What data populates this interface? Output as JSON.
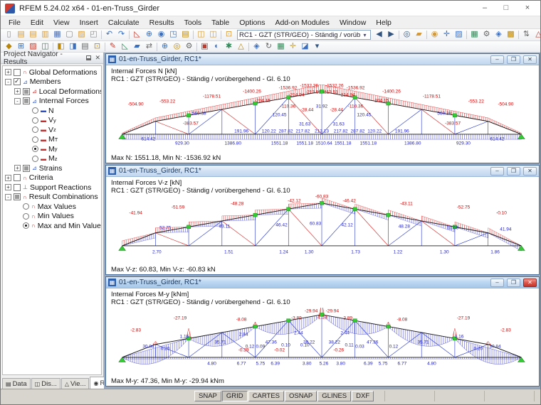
{
  "titlebar": {
    "title": "RFEM 5.24.02 x64 - 01-en-Truss_Girder",
    "minimize": "–",
    "maximize": "□",
    "close": "×"
  },
  "menu": [
    "File",
    "Edit",
    "View",
    "Insert",
    "Calculate",
    "Results",
    "Tools",
    "Table",
    "Options",
    "Add-on Modules",
    "Window",
    "Help"
  ],
  "combo1": "RC1 - GZT (STR/GEO) - Ständig / vorüb",
  "combo_arrow": "▾",
  "toolbars": {
    "row1a": [
      {
        "g": "▯",
        "c": "#888"
      },
      {
        "g": "▤",
        "c": "#d49a3a"
      },
      {
        "g": "▤",
        "c": "#d49a3a"
      },
      {
        "g": "▥",
        "c": "#d49a3a"
      },
      {
        "g": "▦",
        "c": "#4a6fb5"
      },
      {
        "g": "▢",
        "c": "#888"
      },
      {
        "g": "▨",
        "c": "#d49a3a"
      },
      {
        "g": "◰",
        "c": "#888"
      },
      {
        "sep": true
      },
      {
        "g": "↶",
        "c": "#3a6fbf"
      },
      {
        "g": "↷",
        "c": "#3a6fbf"
      },
      {
        "sep": true
      },
      {
        "g": "◺",
        "c": "#c0392b"
      },
      {
        "g": "⊕",
        "c": "#3a6fbf"
      },
      {
        "g": "◉",
        "c": "#3a6fbf"
      },
      {
        "g": "◳",
        "c": "#3a6fbf"
      },
      {
        "g": "▤",
        "c": "#b8860b"
      },
      {
        "sep": true
      },
      {
        "g": "◫",
        "c": "#d49a3a"
      },
      {
        "g": "◫",
        "c": "#d49a3a"
      },
      {
        "sep": true
      },
      {
        "g": "⊡",
        "c": "#d49a3a"
      }
    ],
    "row1b": [
      {
        "g": "◀",
        "c": "#33557f"
      },
      {
        "g": "▶",
        "c": "#33557f"
      },
      {
        "sep": true
      },
      {
        "g": "◎",
        "c": "#33557f"
      },
      {
        "g": "▰",
        "c": "#d49a3a"
      },
      {
        "sep": true
      },
      {
        "g": "◉",
        "c": "#d49a3a"
      },
      {
        "g": "✛",
        "c": "#3a6fbf"
      },
      {
        "g": "▨",
        "c": "#3a6fbf"
      },
      {
        "sep": true
      },
      {
        "g": "▦",
        "c": "#2e8b57"
      },
      {
        "g": "⚙",
        "c": "#666"
      },
      {
        "g": "◈",
        "c": "#3a6fbf"
      },
      {
        "g": "▩",
        "c": "#b8860b"
      },
      {
        "sep": true
      },
      {
        "g": "⇅",
        "c": "#666"
      },
      {
        "g": "△",
        "c": "#c0392b"
      },
      {
        "g": "✕",
        "c": "#c0392b"
      },
      {
        "g": "◑",
        "c": "#444"
      },
      {
        "g": "◆",
        "c": "#3a6fbf"
      },
      {
        "g": "▾",
        "c": "#33557f"
      }
    ],
    "row2": [
      {
        "g": "◆",
        "c": "#b8860b"
      },
      {
        "g": "⊞",
        "c": "#3a6fbf"
      },
      {
        "g": "▨",
        "c": "#c0392b"
      },
      {
        "g": "◫",
        "c": "#2e8b57"
      },
      {
        "sep": true
      },
      {
        "g": "◧",
        "c": "#b8860b"
      },
      {
        "g": "◨",
        "c": "#3a6fbf"
      },
      {
        "g": "▤",
        "c": "#666"
      },
      {
        "g": "⊡",
        "c": "#b8860b"
      },
      {
        "sep": true
      },
      {
        "g": "✎",
        "c": "#c0392b"
      },
      {
        "g": "◺",
        "c": "#2e8b57"
      },
      {
        "g": "▰",
        "c": "#3a6fbf"
      },
      {
        "g": "⇄",
        "c": "#666"
      },
      {
        "sep": true
      },
      {
        "g": "⊕",
        "c": "#3a6fbf"
      },
      {
        "g": "◎",
        "c": "#b8860b"
      },
      {
        "g": "⚙",
        "c": "#666"
      },
      {
        "sep": true
      },
      {
        "g": "▣",
        "c": "#c0392b"
      },
      {
        "g": "◐",
        "c": "#3a6fbf"
      },
      {
        "g": "✱",
        "c": "#2e8b57"
      },
      {
        "g": "△",
        "c": "#b8860b"
      },
      {
        "sep": true
      },
      {
        "g": "◈",
        "c": "#3a6fbf"
      },
      {
        "g": "↻",
        "c": "#666"
      },
      {
        "g": "▦",
        "c": "#2e8b57"
      },
      {
        "g": "✛",
        "c": "#d4a017"
      },
      {
        "g": "◪",
        "c": "#3a6fbf"
      },
      {
        "g": "▾",
        "c": "#33557f"
      }
    ]
  },
  "navigator": {
    "title": "Project Navigator - Results",
    "close": "✕",
    "tree": [
      {
        "lvl": 0,
        "exp": "+",
        "box": "un",
        "icon": "∩",
        "ic": "#c03030",
        "label": "Global Deformations",
        "sub": ""
      },
      {
        "lvl": 0,
        "exp": "-",
        "box": "ck",
        "icon": "⊿",
        "ic": "#3050c0",
        "label": "Members",
        "sub": ""
      },
      {
        "lvl": 1,
        "exp": "+",
        "box": "pa",
        "icon": "⊿",
        "ic": "#c03030",
        "label": "Local Deformations",
        "sub": ""
      },
      {
        "lvl": 1,
        "exp": "-",
        "box": "pa",
        "icon": "⊿",
        "ic": "#3050c0",
        "label": "Internal Forces",
        "sub": ""
      },
      {
        "lvl": 2,
        "radio": 0,
        "icon": "▬",
        "ic": "#3050c0",
        "label": "N",
        "sub": ""
      },
      {
        "lvl": 2,
        "radio": 0,
        "icon": "▬",
        "ic": "#c03030",
        "label": "V",
        "sub": "y"
      },
      {
        "lvl": 2,
        "radio": 0,
        "icon": "▬",
        "ic": "#c03030",
        "label": "V",
        "sub": "z"
      },
      {
        "lvl": 2,
        "radio": 0,
        "icon": "▬",
        "ic": "#c03030",
        "label": "M",
        "sub": "T"
      },
      {
        "lvl": 2,
        "radio": 1,
        "icon": "▬",
        "ic": "#c03030",
        "label": "M",
        "sub": "y"
      },
      {
        "lvl": 2,
        "radio": 0,
        "icon": "▬",
        "ic": "#c03030",
        "label": "M",
        "sub": "z"
      },
      {
        "lvl": 1,
        "exp": "+",
        "box": "pa",
        "icon": "⊿",
        "ic": "#3050c0",
        "label": "Strains",
        "sub": ""
      },
      {
        "lvl": 0,
        "exp": "+",
        "box": "un",
        "icon": "∩",
        "ic": "#c03030",
        "label": "Criteria",
        "sub": ""
      },
      {
        "lvl": 0,
        "exp": "+",
        "box": "un",
        "icon": "⊥",
        "ic": "#2e8b57",
        "label": "Support Reactions",
        "sub": ""
      },
      {
        "lvl": 0,
        "exp": "-",
        "box": "pa",
        "icon": "∩",
        "ic": "#c03030",
        "label": "Result Combinations",
        "sub": ""
      },
      {
        "lvl": 1,
        "radio": 0,
        "icon": "∩",
        "ic": "#c03030",
        "label": "Max Values",
        "sub": ""
      },
      {
        "lvl": 1,
        "radio": 0,
        "icon": "∩",
        "ic": "#c03030",
        "label": "Min Values",
        "sub": ""
      },
      {
        "lvl": 1,
        "radio": 1,
        "icon": "∩",
        "ic": "#c03030",
        "label": "Max and Min Values",
        "sub": ""
      }
    ],
    "tabs": [
      {
        "label": "Data",
        "icon": "▤",
        "active": false
      },
      {
        "label": "Dis...",
        "icon": "◫",
        "active": false
      },
      {
        "label": "Vie...",
        "icon": "△",
        "active": false
      },
      {
        "label": "Re...",
        "icon": "◉",
        "active": true
      }
    ]
  },
  "windows": [
    {
      "title": "01-en-Truss_Girder, RC1*",
      "line1": "Internal Forces N [kN]",
      "line2": "RC1 : GZT (STR/GEO) - Ständig / vorübergehend - Gl. 6.10",
      "footer": "Max N: 1551.18, Min N: -1536.92 kN",
      "type": "N",
      "active": false,
      "labels": [
        [
          "-504.90",
          6,
          30,
          "r"
        ],
        [
          "-553.22",
          13.5,
          26,
          "r"
        ],
        [
          "-1178.51",
          24,
          18,
          "r"
        ],
        [
          "-1400.26",
          33.5,
          11,
          "r"
        ],
        [
          "-1536.92",
          42,
          5,
          "r"
        ],
        [
          "-1532.26",
          47,
          2,
          "r"
        ],
        [
          "-1532.26",
          53,
          2,
          "r"
        ],
        [
          "-1536.92",
          58,
          5,
          "r"
        ],
        [
          "-1400.26",
          66.5,
          11,
          "r"
        ],
        [
          "-1178.51",
          76,
          18,
          "r"
        ],
        [
          "-553.22",
          86.5,
          26,
          "r"
        ],
        [
          "-504.90",
          93.5,
          30,
          "r"
        ],
        [
          "-204.15",
          36,
          24,
          "r"
        ],
        [
          "-214.94",
          44,
          16,
          "r"
        ],
        [
          "-213.51",
          48,
          12,
          "r"
        ],
        [
          "-213.51",
          52,
          12,
          "r"
        ],
        [
          "-214.94",
          56,
          16,
          "r"
        ],
        [
          "-204.15",
          64,
          24,
          "r"
        ],
        [
          "560.38",
          21,
          44,
          "b"
        ],
        [
          "-383.57",
          19,
          58,
          "r"
        ],
        [
          "-383.57",
          81,
          58,
          "r"
        ],
        [
          "560.38",
          79,
          44,
          "b"
        ],
        [
          "-110.36",
          42,
          33,
          "r"
        ],
        [
          "-28.44",
          46.5,
          38,
          "r"
        ],
        [
          "31.92",
          50,
          33,
          "b"
        ],
        [
          "-28.44",
          53.5,
          38,
          "r"
        ],
        [
          "-110.36",
          58,
          33,
          "r"
        ],
        [
          "120.45",
          40,
          46,
          "b"
        ],
        [
          "120.45",
          60,
          46,
          "b"
        ],
        [
          "31.63",
          46,
          60,
          "b"
        ],
        [
          "31.63",
          54,
          60,
          "b"
        ],
        [
          "191.96",
          31,
          70,
          "b"
        ],
        [
          "120.22",
          37.5,
          70,
          "b"
        ],
        [
          "287.82",
          41.5,
          70,
          "b"
        ],
        [
          "217.82",
          45.5,
          70,
          "b"
        ],
        [
          "213.13",
          50,
          70,
          "b"
        ],
        [
          "217.82",
          54.5,
          70,
          "b"
        ],
        [
          "287.82",
          58.5,
          70,
          "b"
        ],
        [
          "120.22",
          62.5,
          70,
          "b"
        ],
        [
          "191.96",
          69,
          70,
          "b"
        ],
        [
          "614.42",
          9,
          82,
          "b"
        ],
        [
          "929.30",
          17,
          88,
          "b"
        ],
        [
          "1386.80",
          29,
          88,
          "b"
        ],
        [
          "1551.18",
          40,
          88,
          "b"
        ],
        [
          "1551.18",
          46,
          88,
          "b"
        ],
        [
          "1510.64",
          50.5,
          88,
          "b"
        ],
        [
          "1551.18",
          55,
          88,
          "b"
        ],
        [
          "1551.18",
          61,
          88,
          "b"
        ],
        [
          "1386.80",
          71.5,
          88,
          "b"
        ],
        [
          "929.30",
          83.5,
          88,
          "b"
        ],
        [
          "614.42",
          91.5,
          82,
          "b"
        ]
      ]
    },
    {
      "title": "01-en-Truss_Girder, RC1*",
      "line1": "Internal Forces V-z [kN]",
      "line2": "RC1 : GZT (STR/GEO) - Ständig / vorübergehend - Gl. 6.10",
      "footer": "Max V-z: 60.83, Min V-z: -60.83 kN",
      "type": "V",
      "active": false,
      "labels": [
        [
          "-41.94",
          6,
          26,
          "r"
        ],
        [
          "-51.59",
          16,
          17,
          "r"
        ],
        [
          "-48.28",
          30,
          12,
          "r"
        ],
        [
          "-42.12",
          43.5,
          7,
          "r"
        ],
        [
          "-60.83",
          50,
          1,
          "r"
        ],
        [
          "-46.42",
          56.5,
          7,
          "r"
        ],
        [
          "-43.11",
          70,
          12,
          "r"
        ],
        [
          "-52.75",
          83.5,
          17,
          "r"
        ],
        [
          "-0.10",
          92.5,
          26,
          "r"
        ],
        [
          "52.75",
          13,
          48,
          "b"
        ],
        [
          "43.11",
          27,
          46,
          "b"
        ],
        [
          "46.42",
          40.5,
          44,
          "b"
        ],
        [
          "60.83",
          48.5,
          42,
          "b"
        ],
        [
          "42.12",
          56,
          44,
          "b"
        ],
        [
          "48.28",
          69.5,
          46,
          "b"
        ],
        [
          "51.59",
          81,
          48,
          "b"
        ],
        [
          "41.94",
          93.5,
          50,
          "b"
        ],
        [
          "2.70",
          11,
          84,
          "b"
        ],
        [
          "1.51",
          28,
          84,
          "b"
        ],
        [
          "1.24",
          41,
          84,
          "b"
        ],
        [
          "1.30",
          47,
          84,
          "b"
        ],
        [
          "1.73",
          58,
          84,
          "b"
        ],
        [
          "1.22",
          68,
          84,
          "b"
        ],
        [
          "1.30",
          79,
          84,
          "b"
        ],
        [
          "1.86",
          91,
          84,
          "b"
        ]
      ]
    },
    {
      "title": "01-en-Truss_Girder, RC1*",
      "line1": "Internal Forces M-y [kNm]",
      "line2": "RC1 : GZT (STR/GEO) - Ständig / vorübergehend - Gl. 6.10",
      "footer": "Max M-y: 47.36, Min M-y: -29.94 kNm",
      "type": "M",
      "active": true,
      "labels": [
        [
          "-2.83",
          6,
          34,
          "r"
        ],
        [
          "-27.19",
          16.5,
          16,
          "r"
        ],
        [
          "-8.08",
          31,
          18,
          "r"
        ],
        [
          "-3.89",
          44,
          16,
          "r"
        ],
        [
          "-29.94",
          47.5,
          5,
          "r"
        ],
        [
          "-29.94",
          52.5,
          5,
          "r"
        ],
        [
          "-1.13",
          50,
          15,
          "r"
        ],
        [
          "-3.89",
          56,
          16,
          "r"
        ],
        [
          "-8.08",
          69,
          18,
          "r"
        ],
        [
          "-27.19",
          83.5,
          16,
          "r"
        ],
        [
          "-2.83",
          93.5,
          34,
          "r"
        ],
        [
          "1.16",
          17.5,
          44,
          "b"
        ],
        [
          "2.84",
          31.5,
          40,
          "b"
        ],
        [
          "2.44",
          44.5,
          38,
          "b"
        ],
        [
          "2.44",
          55.5,
          38,
          "b"
        ],
        [
          "1.16",
          82.5,
          44,
          "b"
        ],
        [
          "35.71",
          26,
          52,
          "b"
        ],
        [
          "47.36",
          38,
          52,
          "b"
        ],
        [
          "38.22",
          47,
          52,
          "b"
        ],
        [
          "38.22",
          53,
          52,
          "b"
        ],
        [
          "47.36",
          62,
          52,
          "b"
        ],
        [
          "35.71",
          74,
          52,
          "b"
        ],
        [
          "30.84",
          9,
          58,
          "b"
        ],
        [
          "0.20",
          13,
          62,
          "b"
        ],
        [
          "-0.39",
          31.5,
          64,
          "r"
        ],
        [
          "0.12",
          33,
          58,
          "b"
        ],
        [
          "0.09",
          35.5,
          58,
          "b"
        ],
        [
          "-0.02",
          40,
          64,
          "r"
        ],
        [
          "0.10",
          41.5,
          56,
          "b"
        ],
        [
          "0.10",
          46,
          56,
          "b"
        ],
        [
          "-0.26",
          54,
          64,
          "r"
        ],
        [
          "0.11",
          56.5,
          56,
          "b"
        ],
        [
          "0.03",
          59,
          58,
          "b"
        ],
        [
          "0.12",
          67,
          58,
          "b"
        ],
        [
          "0.20",
          87,
          62,
          "b"
        ],
        [
          "30.84",
          91,
          58,
          "b"
        ],
        [
          "4.80",
          24,
          84,
          "b"
        ],
        [
          "6.77",
          31,
          84,
          "b"
        ],
        [
          "5.75",
          35.5,
          84,
          "b"
        ],
        [
          "6.39",
          39,
          84,
          "b"
        ],
        [
          "3.80",
          46.5,
          84,
          "b"
        ],
        [
          "5.26",
          50.5,
          84,
          "b"
        ],
        [
          "3.80",
          54.5,
          84,
          "b"
        ],
        [
          "6.39",
          61,
          84,
          "b"
        ],
        [
          "5.75",
          64.5,
          84,
          "b"
        ],
        [
          "6.77",
          69,
          84,
          "b"
        ],
        [
          "4.80",
          76,
          84,
          "b"
        ]
      ]
    }
  ],
  "statusbar": {
    "buttons": [
      "SNAP",
      "GRID",
      "CARTES",
      "OSNAP",
      "GLINES",
      "DXF"
    ],
    "pressed_index": 1
  },
  "colors": {
    "accent_red": "#d40000",
    "accent_blue": "#2222cc",
    "marker_green": "#33cc33",
    "child_frame": "#4a6f9e"
  }
}
